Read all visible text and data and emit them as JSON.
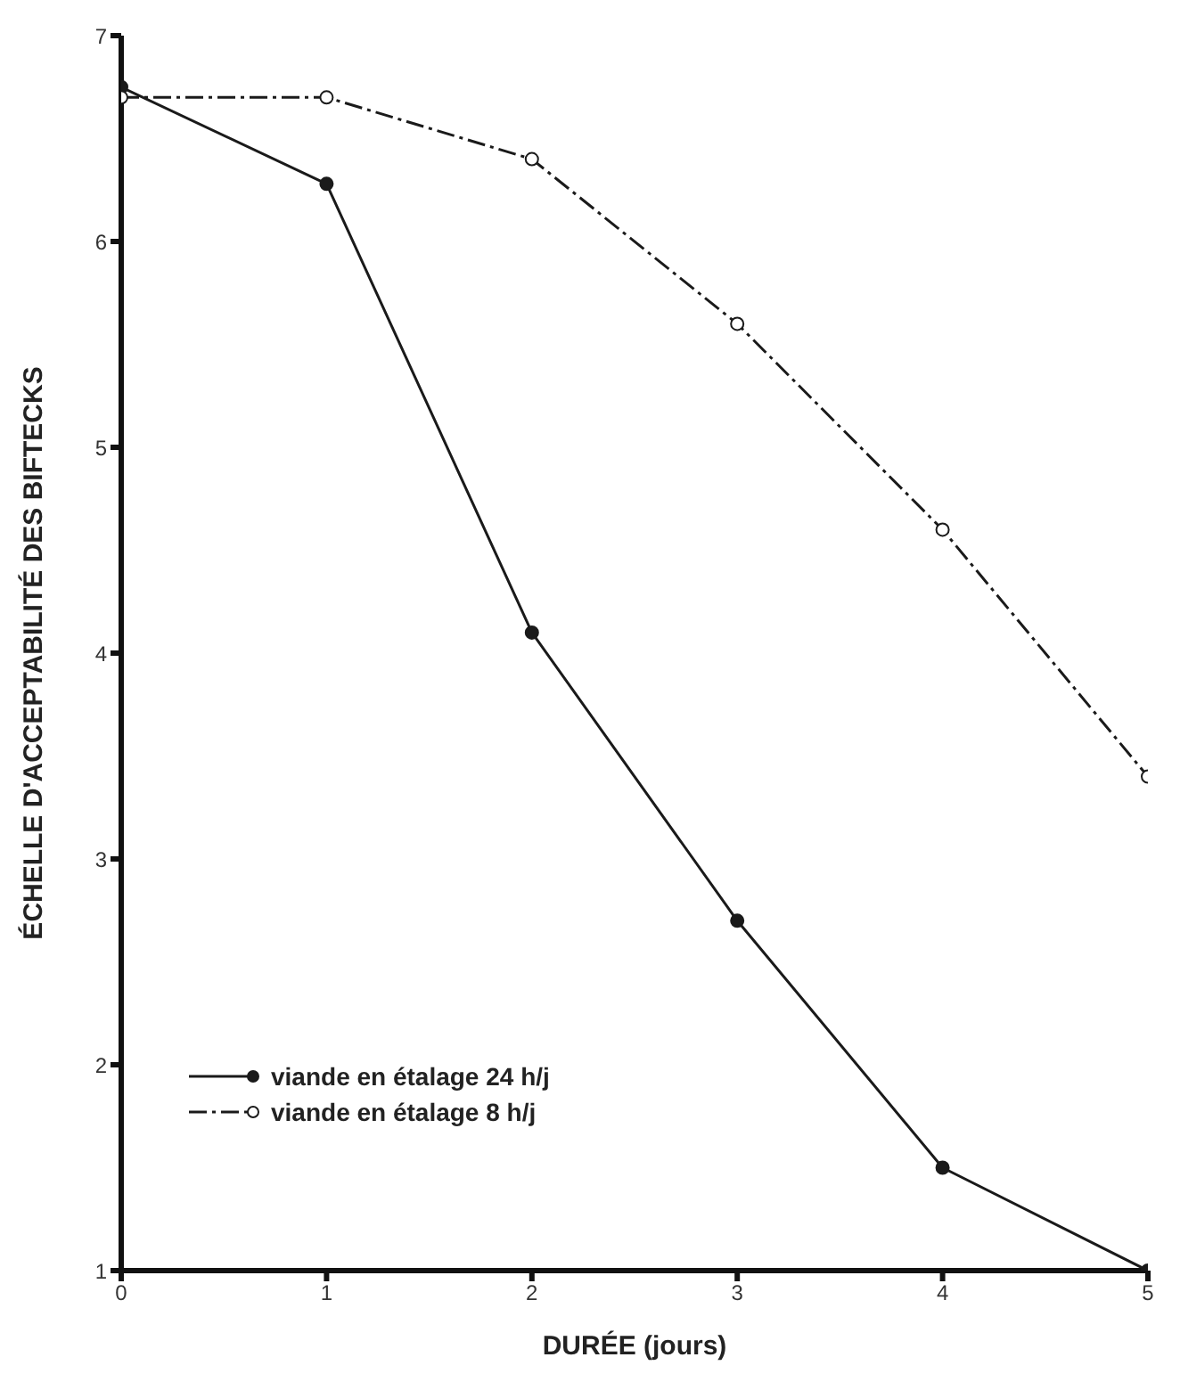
{
  "chart_data": {
    "type": "line",
    "xlabel": "DURÉE (jours)",
    "ylabel": "ÉCHELLE D'ACCEPTABILITÉ DES BIFTECKS",
    "x": [
      0,
      1,
      2,
      3,
      4,
      5
    ],
    "series": [
      {
        "name": "viande en étalage 24 h/j",
        "color": "#1a1a1a",
        "values": [
          6.75,
          6.28,
          4.1,
          2.7,
          1.5,
          1.0
        ],
        "line_style": "solid",
        "marker": "circle"
      },
      {
        "name": "viande en étalage 8 h/j",
        "color": "#1a1a1a",
        "values": [
          6.7,
          6.7,
          6.4,
          5.6,
          4.6,
          3.4
        ],
        "line_style": "dashed",
        "marker": "circle"
      }
    ],
    "xlim": [
      0,
      5
    ],
    "xticks": [
      0,
      1,
      2,
      3,
      4,
      5
    ],
    "ylim": [
      1,
      7
    ],
    "yticks": [
      1,
      2,
      3,
      4,
      5,
      6,
      7
    ],
    "grid": false,
    "legend": "bottom left"
  }
}
